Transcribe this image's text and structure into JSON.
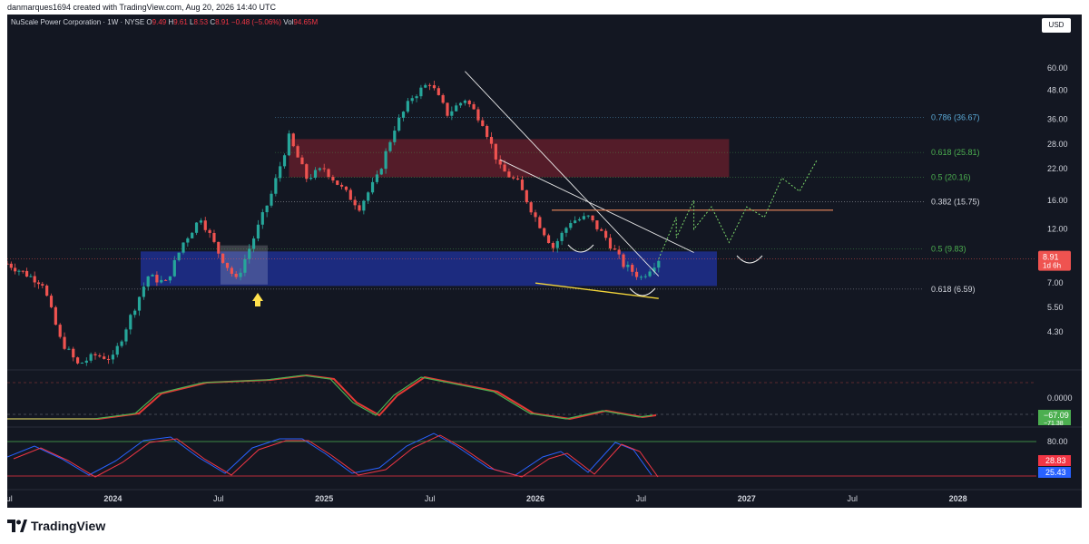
{
  "header": {
    "attribution": "danmarques1694 created with TradingView.com, Aug 20, 2026 14:40 UTC"
  },
  "legend": {
    "symbol": "NuScale Power Corporation · 1W · NYSE",
    "o_label": "O",
    "o_value": "9.49",
    "h_label": "H",
    "h_value": "9.61",
    "l_label": "L",
    "l_value": "8.53",
    "c_label": "C",
    "c_value": "8.91",
    "change": "−0.48 (−5.06%)",
    "vol_label": "Vol",
    "vol_value": "94.65M"
  },
  "currency_button": "USD",
  "footer": {
    "brand": "TradingView"
  },
  "colors": {
    "background": "#131722",
    "bull": "#26a69a",
    "bear": "#ef5350",
    "resistance_zone": "#6b1f2c",
    "support_zone": "#1e2f8f",
    "fib_blue": "#5aa9d6",
    "fib_green": "#4caf50",
    "macd_green": "#4caf50",
    "macd_red": "#e53935",
    "stoch_blue": "#2962ff",
    "stoch_red": "#f23645"
  },
  "chart_data": {
    "type": "candlestick",
    "symbol": "NuScale Power Corporation",
    "interval": "1W",
    "exchange": "NYSE",
    "scale": "log",
    "y_ticks": [
      "60.00",
      "48.00",
      "36.00",
      "28.00",
      "22.00",
      "16.00",
      "12.00",
      "7.00",
      "5.50",
      "4.30"
    ],
    "x_ticks": [
      "Jul",
      "2024",
      "Jul",
      "2025",
      "Jul",
      "2026",
      "Jul",
      "2027",
      "Jul",
      "2028"
    ],
    "price_waypoints": [
      {
        "date": "2023-07",
        "price": 8.5
      },
      {
        "date": "2023-09",
        "price": 7.0
      },
      {
        "date": "2023-10",
        "price": 4.0
      },
      {
        "date": "2023-11",
        "price": 3.1
      },
      {
        "date": "2023-12",
        "price": 3.4
      },
      {
        "date": "2024-01",
        "price": 3.3
      },
      {
        "date": "2024-02",
        "price": 5.0
      },
      {
        "date": "2024-03",
        "price": 7.5
      },
      {
        "date": "2024-04",
        "price": 7.0
      },
      {
        "date": "2024-05",
        "price": 10.5
      },
      {
        "date": "2024-06",
        "price": 13.5
      },
      {
        "date": "2024-07",
        "price": 9.5
      },
      {
        "date": "2024-08",
        "price": 7.2
      },
      {
        "date": "2024-09",
        "price": 11.0
      },
      {
        "date": "2024-10",
        "price": 17.0
      },
      {
        "date": "2024-11",
        "price": 30.0
      },
      {
        "date": "2024-12",
        "price": 20.0
      },
      {
        "date": "2025-01",
        "price": 22.0
      },
      {
        "date": "2025-02",
        "price": 18.0
      },
      {
        "date": "2025-03",
        "price": 15.0
      },
      {
        "date": "2025-04",
        "price": 20.0
      },
      {
        "date": "2025-05",
        "price": 33.0
      },
      {
        "date": "2025-06",
        "price": 45.0
      },
      {
        "date": "2025-07",
        "price": 52.0
      },
      {
        "date": "2025-08",
        "price": 38.0
      },
      {
        "date": "2025-09",
        "price": 44.0
      },
      {
        "date": "2025-10",
        "price": 35.0
      },
      {
        "date": "2025-11",
        "price": 22.0
      },
      {
        "date": "2025-12",
        "price": 19.0
      },
      {
        "date": "2026-01",
        "price": 13.5
      },
      {
        "date": "2026-02",
        "price": 10.0
      },
      {
        "date": "2026-03",
        "price": 13.0
      },
      {
        "date": "2026-04",
        "price": 13.5
      },
      {
        "date": "2026-05",
        "price": 11.0
      },
      {
        "date": "2026-06",
        "price": 8.4
      },
      {
        "date": "2026-07",
        "price": 7.4
      },
      {
        "date": "2026-08",
        "price": 8.91
      }
    ],
    "projection_path": [
      {
        "date": "2026-08",
        "price": 8.91
      },
      {
        "date": "2026-09",
        "price": 13.5
      },
      {
        "date": "2026-09",
        "price": 11.0
      },
      {
        "date": "2026-10",
        "price": 16.0
      },
      {
        "date": "2026-10",
        "price": 12.0
      },
      {
        "date": "2026-11",
        "price": 15.0
      },
      {
        "date": "2026-12",
        "price": 10.5
      },
      {
        "date": "2027-01",
        "price": 15.0
      },
      {
        "date": "2027-02",
        "price": 13.5
      },
      {
        "date": "2027-03",
        "price": 20.0
      },
      {
        "date": "2027-04",
        "price": 17.5
      },
      {
        "date": "2027-05",
        "price": 24.0
      }
    ],
    "fib_levels": [
      {
        "label": "0.786 (36.67)",
        "price": 36.67,
        "color": "#5aa9d6"
      },
      {
        "label": "0.618 (25.81)",
        "price": 25.81,
        "color": "#4caf50"
      },
      {
        "label": "0.5 (20.16)",
        "price": 20.16,
        "color": "#4caf50"
      },
      {
        "label": "0.382 (15.75)",
        "price": 15.75,
        "color": "#d1d4dc"
      },
      {
        "label": "0.5 (9.83)",
        "price": 9.83,
        "color": "#4caf50"
      },
      {
        "label": "0.618 (6.59)",
        "price": 6.59,
        "color": "#d1d4dc"
      }
    ],
    "resistance_zone": {
      "from": "2024-11",
      "to": "2026-12",
      "low": 20.16,
      "high": 29.5
    },
    "support_zone": {
      "from": "2024-01",
      "to": "2026-11",
      "low": 6.8,
      "high": 9.6
    },
    "horizontal_line": {
      "from": "2026-02",
      "to": "2027-06",
      "price": 14.5
    },
    "trendlines": [
      {
        "from": {
          "date": "2025-09",
          "price": 58
        },
        "to": {
          "date": "2026-08",
          "price": 7.5
        }
      },
      {
        "from": {
          "date": "2025-11",
          "price": 24
        },
        "to": {
          "date": "2026-10",
          "price": 9.5
        }
      },
      {
        "from": {
          "date": "2026-01",
          "price": 7.0
        },
        "to": {
          "date": "2026-08",
          "price": 6.0
        }
      }
    ],
    "last_price": {
      "value": "8.91",
      "countdown": "1d 6h"
    },
    "macd": {
      "ticks": [
        "0.0000"
      ],
      "badges": [
        "−67.09",
        "−71.38"
      ]
    },
    "stoch": {
      "ticks": [
        "80.00"
      ],
      "badges": [
        "28.83",
        "25.43"
      ]
    }
  }
}
